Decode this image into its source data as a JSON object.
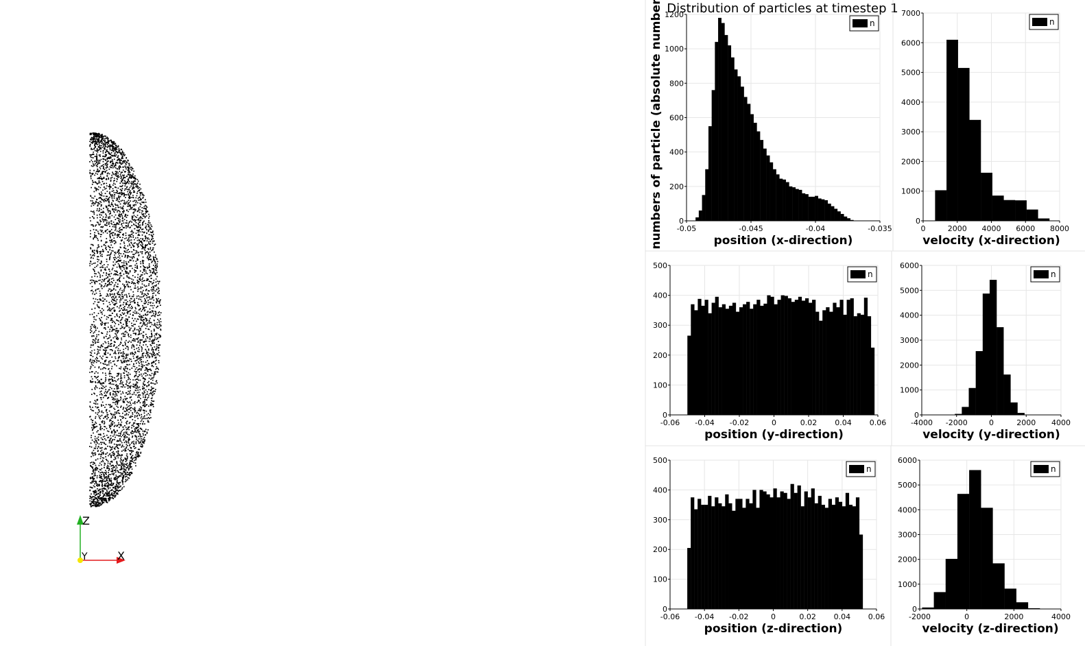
{
  "figure_title": "Distribution of particles at timestep 1",
  "ylabel_shared": "numbers of particle (absolute numbers)",
  "orientation_axes": {
    "x": "X",
    "y": "Y",
    "z": "Z",
    "x_color": "#e41a1c",
    "z_color": "#22b022",
    "y_color": "#f5e600"
  },
  "bar_color": "#000000",
  "grid_color": "#e6e6e6",
  "chart_data": [
    {
      "type": "bar",
      "title": "",
      "xlabel": "position (x-direction)",
      "legend": "n",
      "xlim": [
        -0.05,
        -0.035
      ],
      "ylim": [
        0,
        1200
      ],
      "xticks": [
        -0.05,
        -0.045,
        -0.04,
        -0.035
      ],
      "xtick_labels": [
        "-0.05",
        "-0.045",
        "-0.04",
        "-0.035"
      ],
      "yticks": [
        0,
        200,
        400,
        600,
        800,
        1000,
        1200
      ],
      "ytick_labels": [
        "0",
        "200",
        "400",
        "600",
        "800",
        "1000",
        "1200"
      ],
      "bin_start": -0.0493,
      "bin_width": 0.00025,
      "values": [
        20,
        60,
        150,
        300,
        550,
        760,
        1040,
        1180,
        1150,
        1080,
        1020,
        950,
        880,
        840,
        780,
        720,
        680,
        620,
        570,
        520,
        470,
        420,
        380,
        340,
        300,
        270,
        245,
        240,
        225,
        200,
        195,
        185,
        180,
        160,
        155,
        140,
        140,
        145,
        130,
        125,
        120,
        100,
        85,
        70,
        55,
        40,
        25,
        15,
        5
      ]
    },
    {
      "type": "bar",
      "title": "",
      "xlabel": "velocity (x-direction)",
      "legend": "n",
      "xlim": [
        0,
        8000
      ],
      "ylim": [
        0,
        7000
      ],
      "xticks": [
        0,
        2000,
        4000,
        6000,
        8000
      ],
      "xtick_labels": [
        "0",
        "2000",
        "4000",
        "6000",
        "8000"
      ],
      "yticks": [
        0,
        1000,
        2000,
        3000,
        4000,
        5000,
        6000,
        7000
      ],
      "ytick_labels": [
        "0",
        "1000",
        "2000",
        "3000",
        "4000",
        "5000",
        "6000",
        "7000"
      ],
      "bin_start": 700,
      "bin_width": 670,
      "values": [
        1030,
        6100,
        5150,
        3400,
        1620,
        850,
        700,
        690,
        380,
        80
      ]
    },
    {
      "type": "bar",
      "title": "",
      "xlabel": "position (y-direction)",
      "legend": "n",
      "xlim": [
        -0.06,
        0.06
      ],
      "ylim": [
        0,
        500
      ],
      "xticks": [
        -0.06,
        -0.04,
        -0.02,
        0,
        0.02,
        0.04,
        0.06
      ],
      "xtick_labels": [
        "-0.06",
        "-0.04",
        "-0.02",
        "0",
        "0.02",
        "0.04",
        "0.06"
      ],
      "yticks": [
        0,
        100,
        200,
        300,
        400,
        500
      ],
      "ytick_labels": [
        "0",
        "100",
        "200",
        "300",
        "400",
        "500"
      ],
      "bin_start": -0.05,
      "bin_width": 0.002,
      "values": [
        265,
        370,
        350,
        388,
        365,
        385,
        340,
        375,
        395,
        360,
        370,
        355,
        365,
        375,
        345,
        360,
        370,
        378,
        355,
        370,
        385,
        365,
        372,
        400,
        395,
        370,
        385,
        400,
        398,
        390,
        378,
        385,
        395,
        382,
        390,
        375,
        385,
        345,
        315,
        350,
        360,
        345,
        375,
        360,
        385,
        335,
        385,
        390,
        330,
        340,
        335,
        392,
        330,
        225
      ]
    },
    {
      "type": "bar",
      "title": "",
      "xlabel": "velocity (y-direction)",
      "legend": "n",
      "xlim": [
        -4000,
        4000
      ],
      "ylim": [
        0,
        6000
      ],
      "xticks": [
        -4000,
        -2000,
        0,
        2000,
        4000
      ],
      "xtick_labels": [
        "-4000",
        "-2000",
        "0",
        "2000",
        "4000"
      ],
      "yticks": [
        0,
        1000,
        2000,
        3000,
        4000,
        5000,
        6000
      ],
      "ytick_labels": [
        "0",
        "1000",
        "2000",
        "3000",
        "4000",
        "5000",
        "6000"
      ],
      "bin_start": -2500,
      "bin_width": 400,
      "values": [
        5,
        40,
        320,
        1080,
        2560,
        4870,
        5420,
        3520,
        1620,
        500,
        80,
        5
      ]
    },
    {
      "type": "bar",
      "title": "",
      "xlabel": "position (z-direction)",
      "legend": "n",
      "xlim": [
        -0.06,
        0.06
      ],
      "ylim": [
        0,
        500
      ],
      "xticks": [
        -0.06,
        -0.04,
        -0.02,
        0,
        0.02,
        0.04,
        0.06
      ],
      "xtick_labels": [
        "-0.06",
        "-0.04",
        "-0.02",
        "0",
        "0.02",
        "0.04",
        "0.06"
      ],
      "yticks": [
        0,
        100,
        200,
        300,
        400,
        500
      ],
      "ytick_labels": [
        "0",
        "100",
        "200",
        "300",
        "400",
        "500"
      ],
      "bin_start": -0.05,
      "bin_width": 0.002,
      "values": [
        205,
        375,
        335,
        370,
        350,
        350,
        380,
        345,
        375,
        355,
        345,
        385,
        355,
        330,
        370,
        370,
        340,
        370,
        355,
        400,
        340,
        400,
        395,
        385,
        375,
        405,
        375,
        395,
        390,
        370,
        420,
        390,
        415,
        345,
        395,
        375,
        405,
        355,
        380,
        350,
        340,
        370,
        350,
        375,
        360,
        345,
        390,
        350,
        345,
        375,
        250
      ]
    },
    {
      "type": "bar",
      "title": "",
      "xlabel": "velocity (z-direction)",
      "legend": "n",
      "xlim": [
        -2000,
        4000
      ],
      "ylim": [
        0,
        6000
      ],
      "xticks": [
        -2000,
        0,
        2000,
        4000
      ],
      "xtick_labels": [
        "-2000",
        "0",
        "2000",
        "4000"
      ],
      "yticks": [
        0,
        1000,
        2000,
        3000,
        4000,
        5000,
        6000
      ],
      "ytick_labels": [
        "0",
        "1000",
        "2000",
        "3000",
        "4000",
        "5000",
        "6000"
      ],
      "bin_start": -1900,
      "bin_width": 500,
      "values": [
        60,
        680,
        2020,
        4640,
        5600,
        4080,
        1840,
        820,
        270,
        30
      ]
    }
  ]
}
